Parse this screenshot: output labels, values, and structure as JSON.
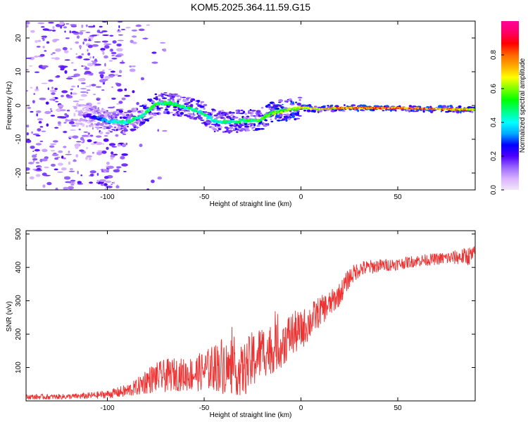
{
  "chart_data": [
    {
      "type": "heatmap",
      "title": "KOM5.2025.364.11.59.G15",
      "xlabel": "Height of straight line (km)",
      "ylabel": "Frequency (Hz)",
      "xlim": [
        -142,
        90
      ],
      "ylim": [
        -25,
        25
      ],
      "xticks": [
        -100,
        -50,
        0,
        50
      ],
      "xtick_labels": [
        "-100",
        "-50",
        "0",
        "50"
      ],
      "yticks": [
        -20,
        -10,
        0,
        10,
        20
      ],
      "ytick_labels": [
        "-20",
        "-10",
        "0",
        "10",
        "20"
      ],
      "colorbar": {
        "label": "Normalized spectral amplitude",
        "range": [
          0,
          1
        ],
        "ticks": [
          0.0,
          0.2,
          0.4,
          0.6,
          0.8
        ],
        "tick_labels": [
          "0.0",
          "0.2",
          "0.4",
          "0.6",
          "0.8"
        ],
        "colors": [
          "#f2e6fa",
          "#d9b3ff",
          "#9966ff",
          "#4d00ff",
          "#0000ff",
          "#00aaff",
          "#00ffff",
          "#00ff80",
          "#00ff00",
          "#80ff00",
          "#ffff00",
          "#ffaa00",
          "#ff6600",
          "#ff0000",
          "#ff0066",
          "#ff0099"
        ]
      },
      "ridge": {
        "x": [
          -110,
          -100,
          -90,
          -82,
          -75,
          -68,
          -60,
          -52,
          -45,
          -38,
          -30,
          -22,
          -15,
          -8,
          0,
          10,
          20,
          30,
          40,
          50,
          60,
          70,
          80,
          90
        ],
        "frequency": [
          -3,
          -4.5,
          -5,
          -3,
          0.5,
          0.8,
          -0.5,
          -1.8,
          -4.5,
          -5,
          -4.5,
          -4.5,
          -2.2,
          -1.4,
          -0.6,
          -1.1,
          -0.7,
          -0.7,
          -0.8,
          -0.8,
          -0.9,
          -1.0,
          -1.1,
          -1.2
        ],
        "amplitude": [
          0.2,
          0.4,
          0.45,
          0.5,
          0.55,
          0.5,
          0.5,
          0.5,
          0.45,
          0.5,
          0.5,
          0.55,
          0.6,
          0.6,
          0.7,
          0.7,
          0.8,
          0.85,
          0.85,
          0.85,
          0.8,
          0.8,
          0.78,
          0.75
        ]
      }
    },
    {
      "type": "line",
      "xlabel": "Height of straight line (km)",
      "ylabel": "SNR (v/v)",
      "xlim": [
        -142,
        90
      ],
      "ylim": [
        0,
        510
      ],
      "xticks": [
        -100,
        -50,
        0,
        50
      ],
      "xtick_labels": [
        "-100",
        "-50",
        "0",
        "50"
      ],
      "yticks": [
        100,
        200,
        300,
        400,
        500
      ],
      "ytick_labels": [
        "100",
        "200",
        "300",
        "400",
        "500"
      ],
      "series": [
        {
          "name": "SNR",
          "color": "#ee3333",
          "x": [
            -142,
            -130,
            -120,
            -110,
            -100,
            -90,
            -85,
            -80,
            -75,
            -70,
            -65,
            -60,
            -55,
            -50,
            -45,
            -40,
            -35,
            -30,
            -25,
            -20,
            -15,
            -10,
            -5,
            0,
            5,
            10,
            15,
            20,
            25,
            30,
            40,
            50,
            60,
            70,
            80,
            88
          ],
          "baseline": [
            12,
            12,
            13,
            15,
            20,
            30,
            40,
            60,
            70,
            75,
            80,
            78,
            82,
            90,
            100,
            110,
            80,
            90,
            120,
            150,
            150,
            170,
            200,
            210,
            240,
            270,
            290,
            320,
            370,
            395,
            405,
            410,
            420,
            425,
            430,
            435
          ],
          "noise": [
            8,
            8,
            8,
            10,
            12,
            20,
            25,
            40,
            45,
            50,
            50,
            50,
            55,
            60,
            70,
            90,
            60,
            80,
            90,
            80,
            70,
            70,
            70,
            60,
            55,
            45,
            40,
            35,
            30,
            25,
            20,
            18,
            18,
            18,
            22,
            30
          ]
        }
      ]
    }
  ]
}
